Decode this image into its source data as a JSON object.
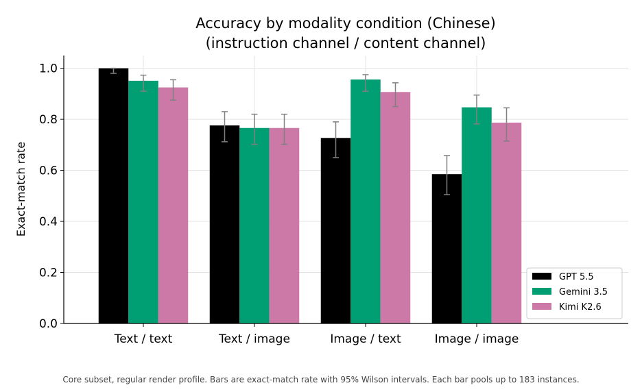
{
  "chart_data": {
    "type": "bar",
    "title_lines": [
      "Accuracy by modality condition (Chinese)",
      "(instruction channel / content channel)"
    ],
    "xlabel": "",
    "ylabel": "Exact-match rate",
    "ylim": [
      0,
      1.05
    ],
    "yticks": [
      "0.0",
      "0.2",
      "0.4",
      "0.6",
      "0.8",
      "1.0"
    ],
    "categories": [
      "Text / text",
      "Text / image",
      "Image / text",
      "Image / image"
    ],
    "grid": true,
    "legend_position": "lower-right",
    "series": [
      {
        "name": "GPT 5.5",
        "color": "#000000",
        "values": [
          1.0,
          0.776,
          0.727,
          0.585
        ],
        "ci_low": [
          0.98,
          0.712,
          0.65,
          0.505
        ],
        "ci_high": [
          1.0,
          0.83,
          0.79,
          0.658
        ]
      },
      {
        "name": "Gemini 3.5",
        "color": "#009E73",
        "values": [
          0.951,
          0.766,
          0.956,
          0.847
        ],
        "ci_low": [
          0.91,
          0.702,
          0.91,
          0.782
        ],
        "ci_high": [
          0.973,
          0.82,
          0.975,
          0.895
        ]
      },
      {
        "name": "Kimi K2.6",
        "color": "#CC79A7",
        "values": [
          0.925,
          0.766,
          0.907,
          0.787
        ],
        "ci_low": [
          0.875,
          0.702,
          0.85,
          0.715
        ],
        "ci_high": [
          0.955,
          0.82,
          0.943,
          0.845
        ]
      }
    ],
    "errorbar_color": "#808080"
  },
  "caption": "Core subset, regular render profile. Bars are exact-match rate with 95% Wilson intervals. Each bar pools up to 183 instances."
}
